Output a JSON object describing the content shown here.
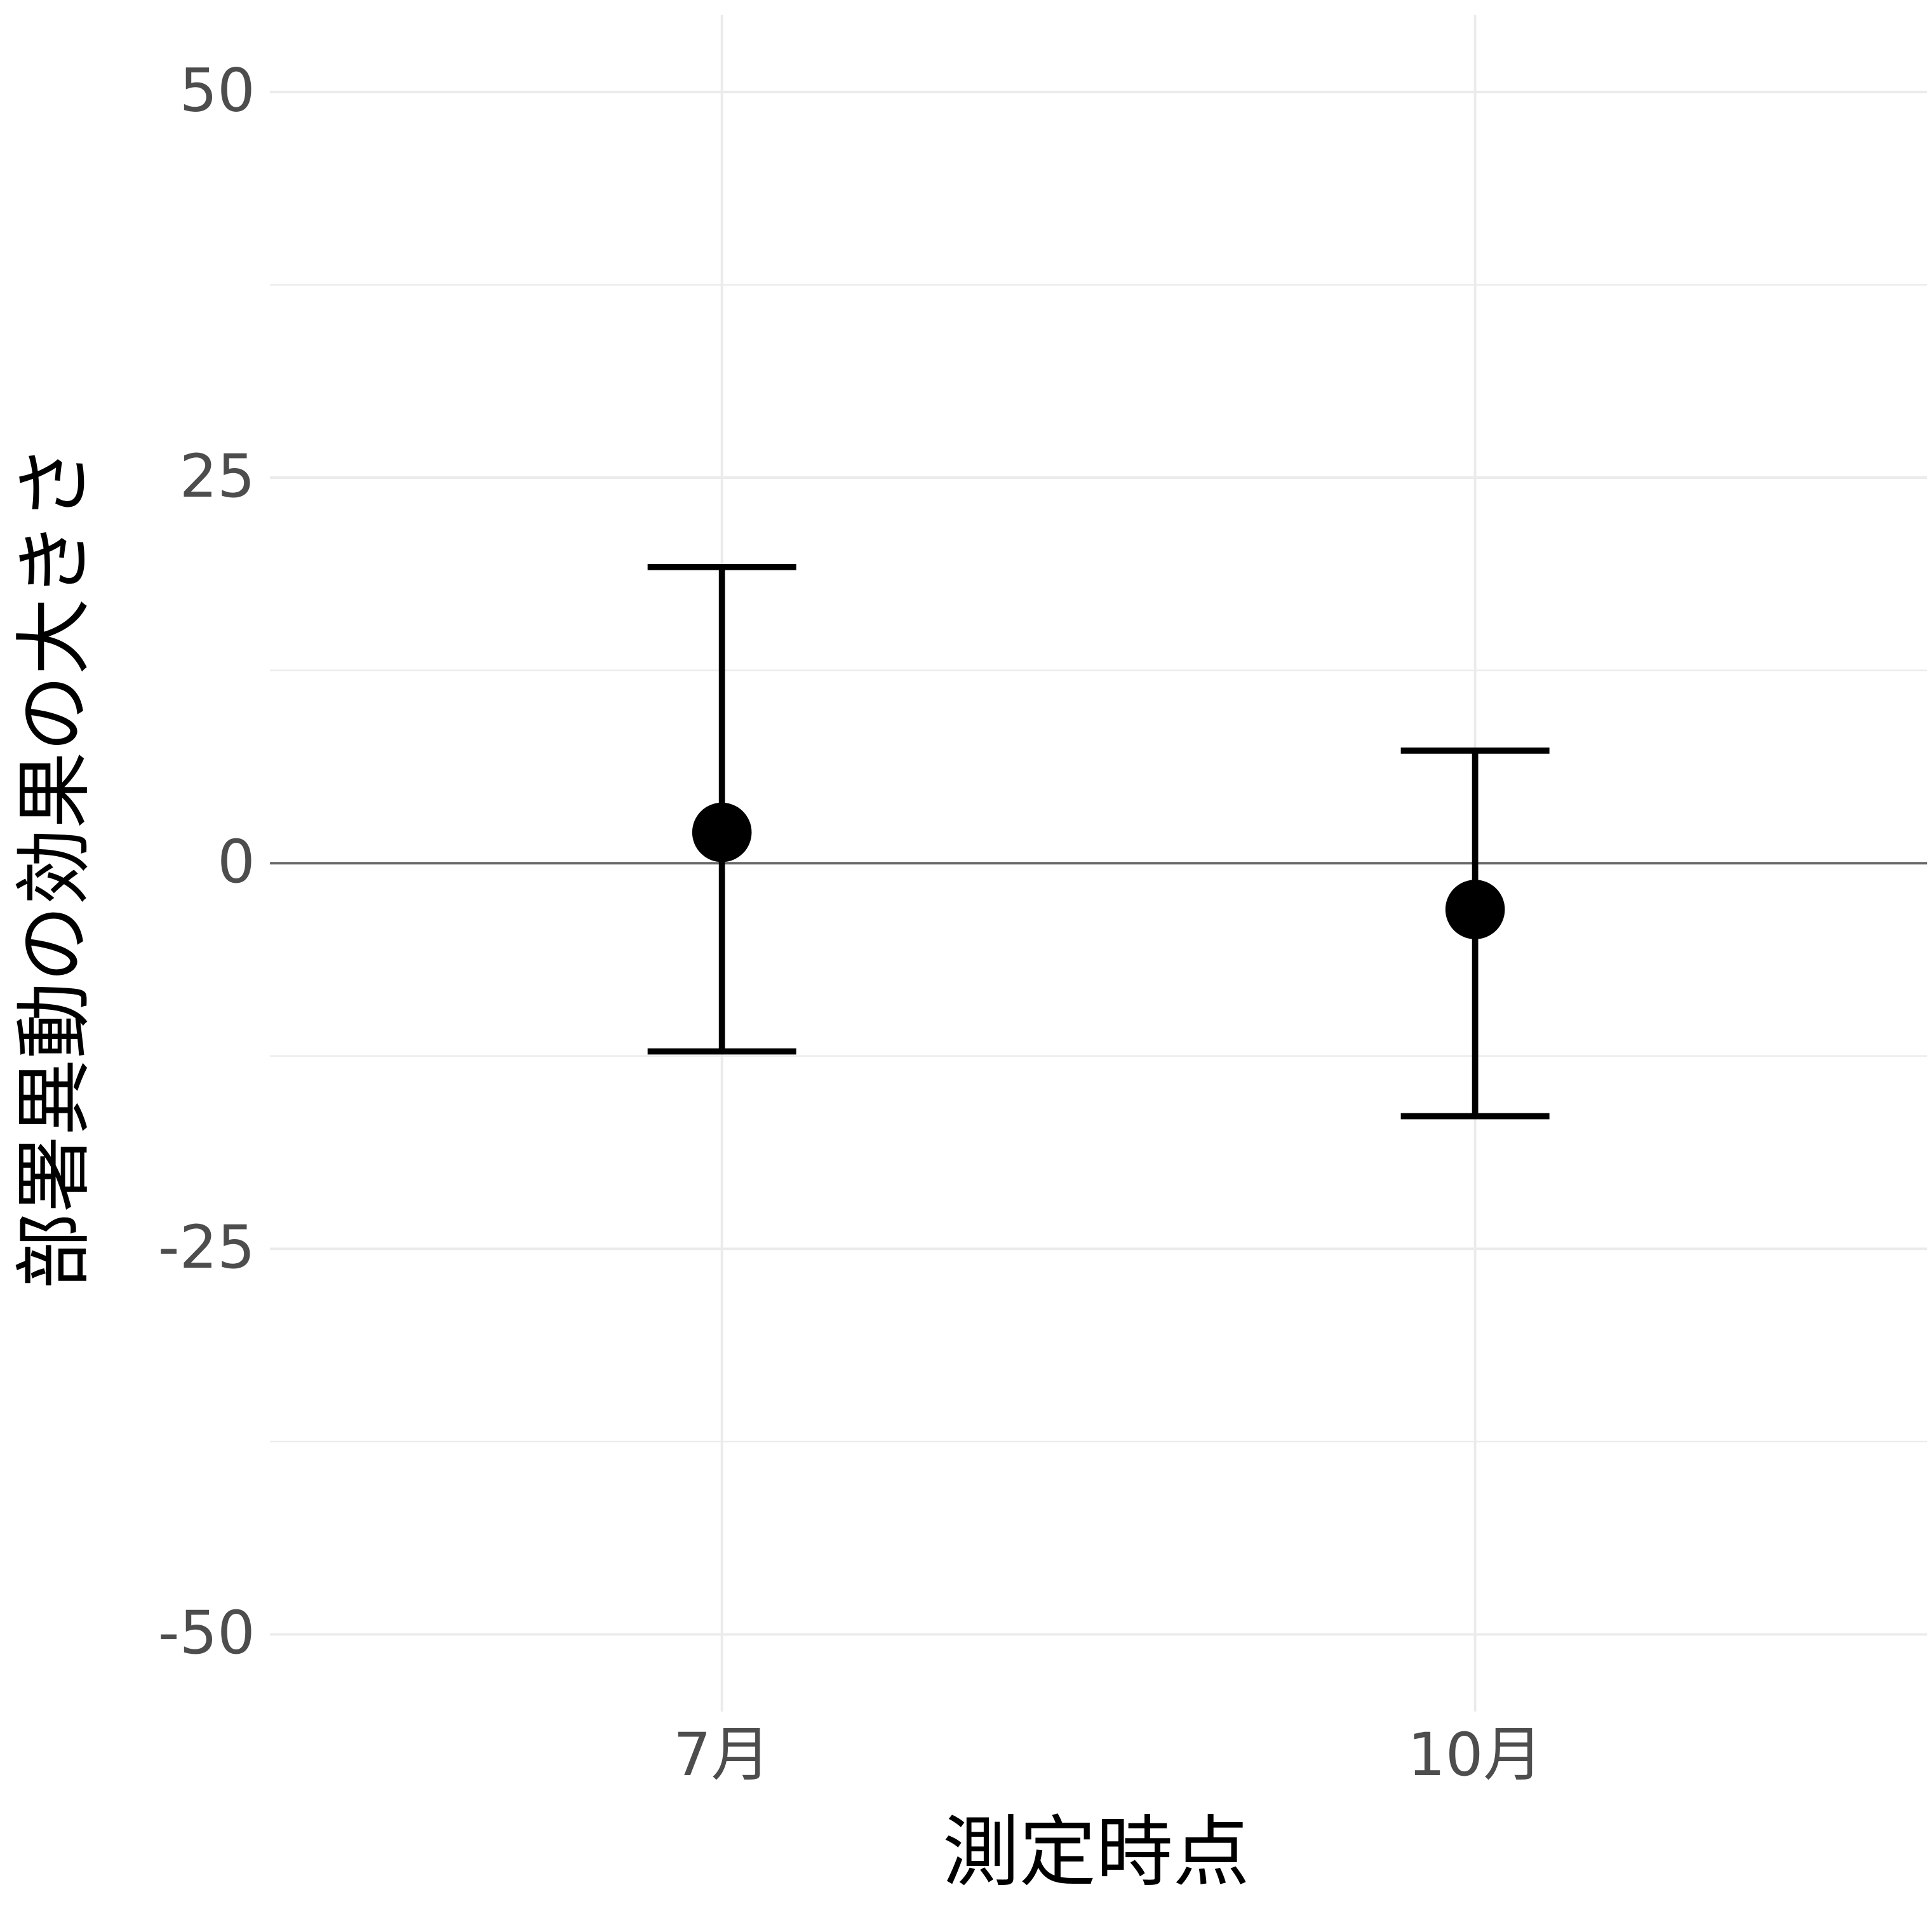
{
  "chart_data": {
    "type": "errorbar",
    "x_label": "測定時点",
    "y_label": "部署異動の効果の大きさ",
    "categories": [
      "7月",
      "10月"
    ],
    "series": [
      {
        "values": [
          2.0,
          -3.0
        ],
        "lower": [
          -12.2,
          -16.4
        ],
        "upper": [
          19.2,
          7.3
        ],
        "color": "#000000"
      }
    ],
    "ylim": [
      -55,
      55
    ],
    "yticks": [
      -50,
      -25,
      0,
      25,
      50
    ],
    "minor_yticks": [
      -37.5,
      -12.5,
      12.5,
      37.5
    ],
    "hline": 0,
    "grid": true
  }
}
